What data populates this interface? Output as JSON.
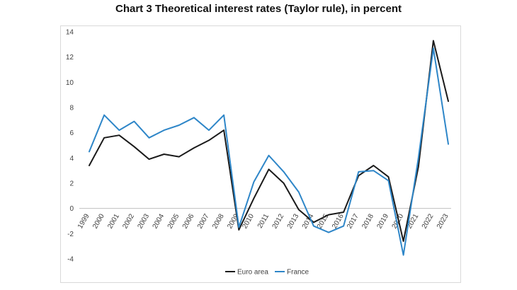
{
  "chart_data": {
    "type": "line",
    "title": "Chart 3  Theoretical interest rates (Taylor rule), in percent",
    "xlabel": "",
    "ylabel": "",
    "ylim": [
      -4,
      14
    ],
    "yticks": [
      -4,
      -2,
      0,
      2,
      4,
      6,
      8,
      10,
      12,
      14
    ],
    "categories": [
      "1999",
      "2000",
      "2001",
      "2002",
      "2003",
      "2004",
      "2005",
      "2006",
      "2007",
      "2008",
      "2009",
      "2010",
      "2011",
      "2012",
      "2013",
      "2014",
      "2015",
      "2016",
      "2017",
      "2018",
      "2019",
      "2020",
      "2021",
      "2022",
      "2023"
    ],
    "series": [
      {
        "name": "Euro area",
        "color": "#1a1a1a",
        "values": [
          3.4,
          5.6,
          5.8,
          4.9,
          3.9,
          4.3,
          4.1,
          4.8,
          5.4,
          6.2,
          -1.7,
          0.8,
          3.1,
          2.0,
          -0.1,
          -1.1,
          -0.5,
          -0.3,
          2.6,
          3.4,
          2.5,
          -2.6,
          3.3,
          13.3,
          8.5
        ]
      },
      {
        "name": "France",
        "color": "#2e86c8",
        "values": [
          4.5,
          7.4,
          6.2,
          6.9,
          5.6,
          6.2,
          6.6,
          7.2,
          6.2,
          7.4,
          -1.5,
          2.1,
          4.2,
          2.9,
          1.3,
          -1.4,
          -1.9,
          -1.4,
          2.9,
          3.0,
          2.2,
          -3.7,
          4.0,
          12.7,
          5.1
        ]
      }
    ],
    "grid": false,
    "legend_position": "bottom-center"
  }
}
